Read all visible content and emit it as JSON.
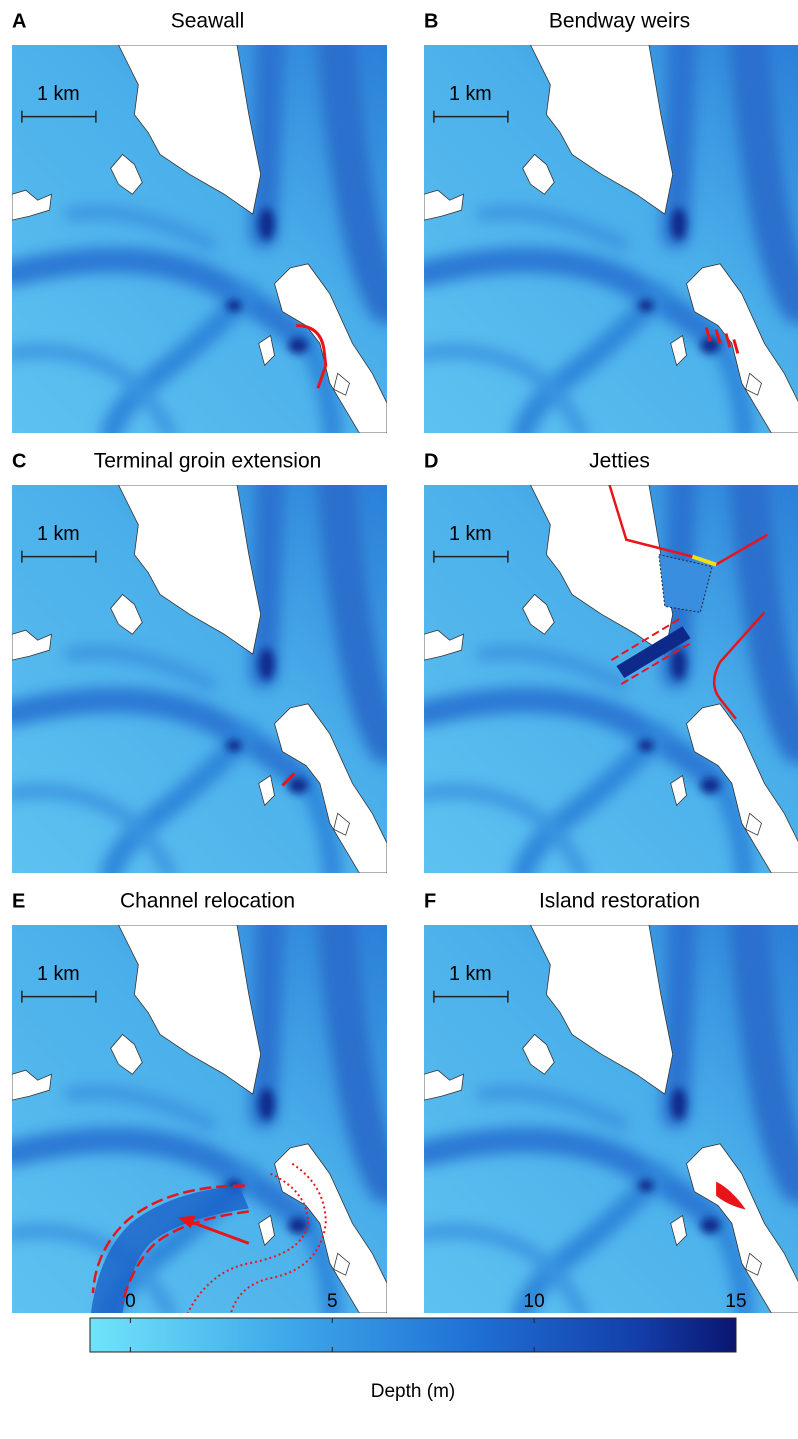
{
  "panels": [
    {
      "letter": "A",
      "title": "Seawall",
      "scale": "1 km"
    },
    {
      "letter": "B",
      "title": "Bendway weirs",
      "scale": "1 km"
    },
    {
      "letter": "C",
      "title": "Terminal groin extension",
      "scale": "1 km"
    },
    {
      "letter": "D",
      "title": "Jetties",
      "scale": "1 km"
    },
    {
      "letter": "E",
      "title": "Channel relocation",
      "scale": "1 km"
    },
    {
      "letter": "F",
      "title": "Island restoration",
      "scale": "1 km"
    }
  ],
  "colorbar": {
    "label": "Depth (m)",
    "lim": [
      -1,
      15
    ],
    "ticks": [
      0,
      5,
      10,
      15
    ]
  }
}
